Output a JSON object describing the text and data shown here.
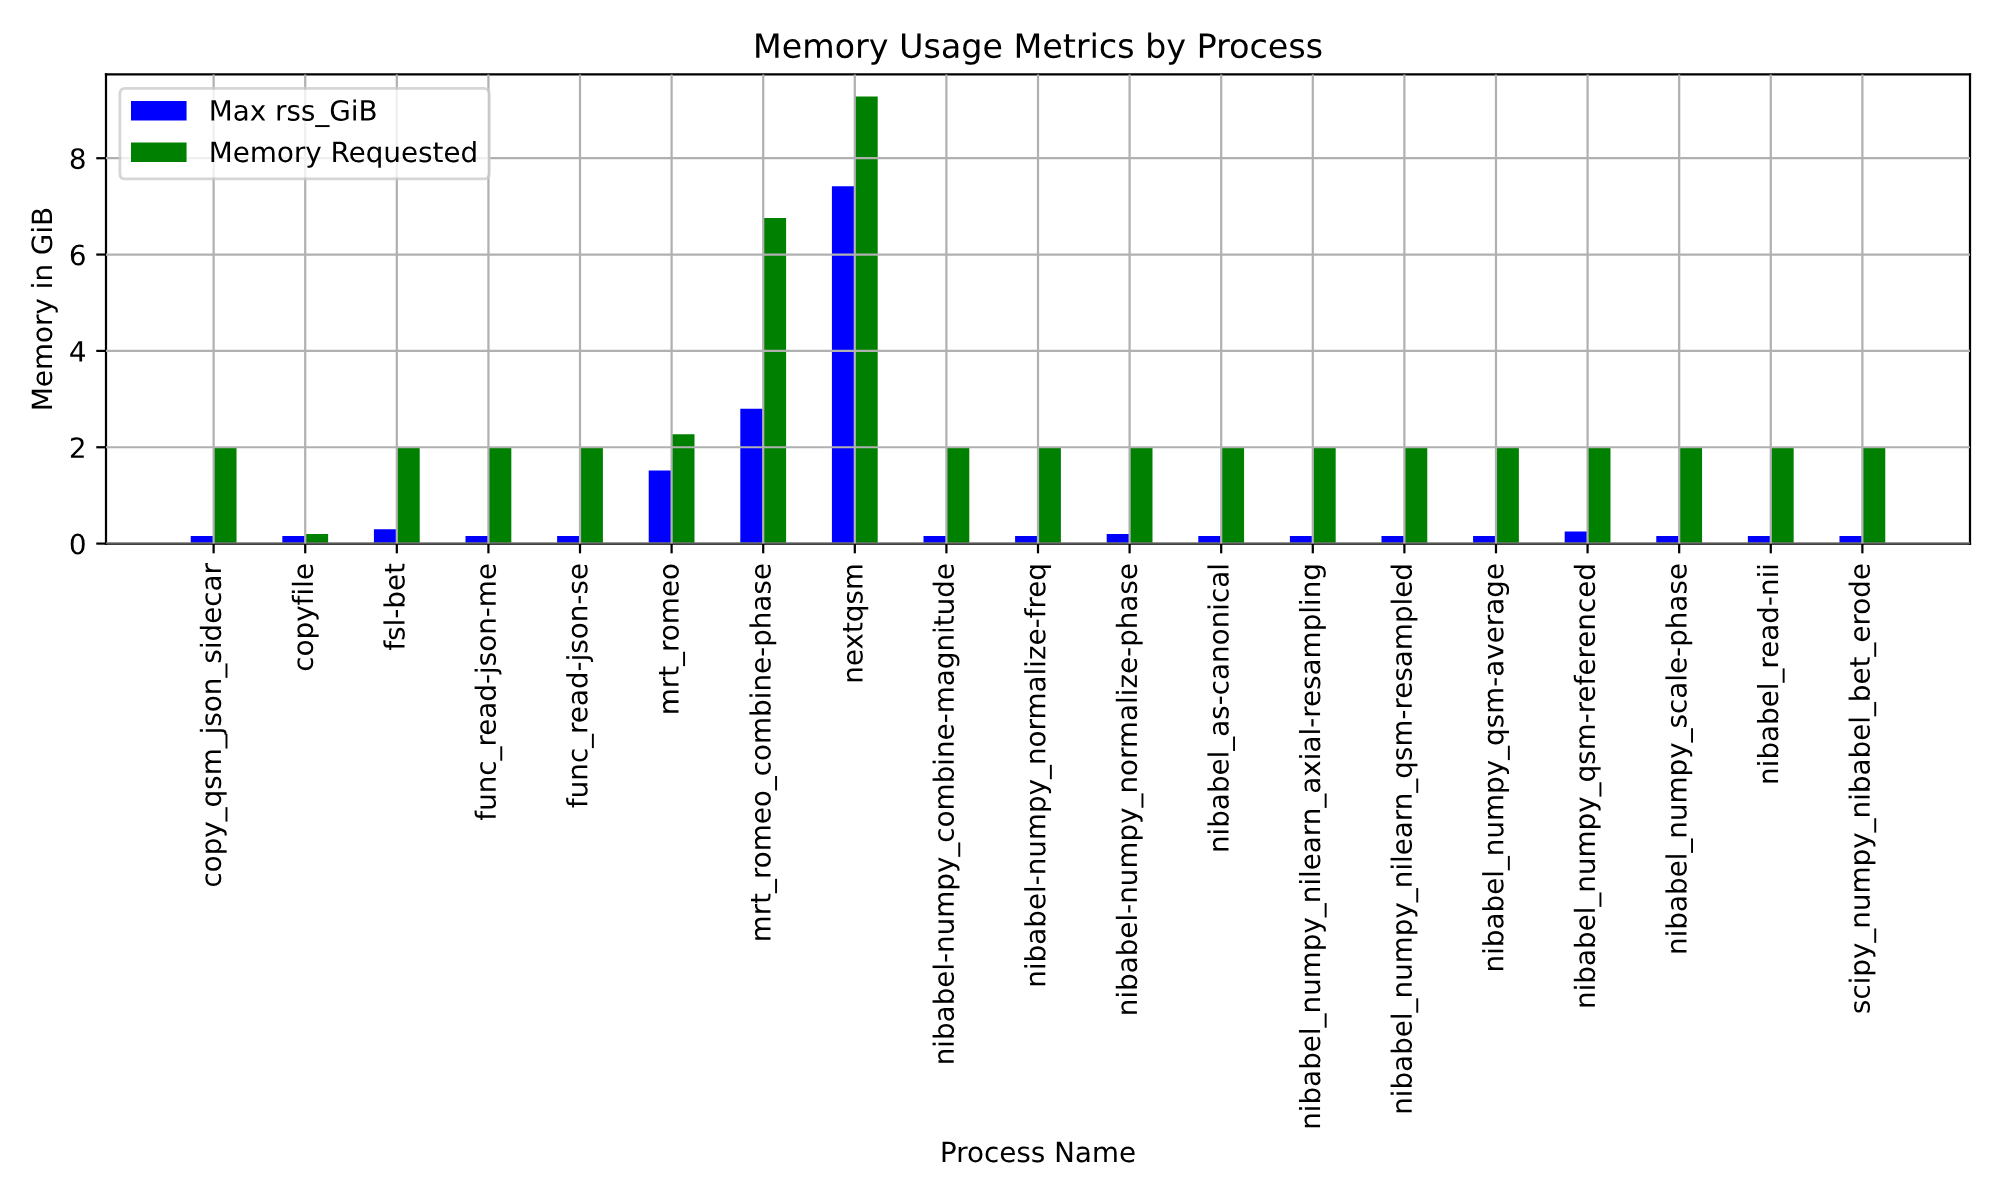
{
  "chart_data": {
    "type": "bar",
    "title": "Memory Usage Metrics by Process",
    "xlabel": "Process Name",
    "ylabel": "Memory in GiB",
    "categories": [
      "copy_qsm_json_sidecar",
      "copyfile",
      "fsl-bet",
      "func_read-json-me",
      "func_read-json-se",
      "mrt_romeo",
      "mrt_romeo_combine-phase",
      "nextqsm",
      "nibabel-numpy_combine-magnitude",
      "nibabel-numpy_normalize-freq",
      "nibabel-numpy_normalize-phase",
      "nibabel_as-canonical",
      "nibabel_numpy_nilearn_axial-resampling",
      "nibabel_numpy_nilearn_qsm-resampled",
      "nibabel_numpy_qsm-average",
      "nibabel_numpy_qsm-referenced",
      "nibabel_numpy_scale-phase",
      "nibabel_read-nii",
      "scipy_numpy_nibabel_bet_erode"
    ],
    "series": [
      {
        "name": "Max rss_GiB",
        "color": "#0000ff",
        "values": [
          0.16,
          0.16,
          0.3,
          0.16,
          0.16,
          1.52,
          2.8,
          7.42,
          0.16,
          0.16,
          0.2,
          0.16,
          0.16,
          0.16,
          0.16,
          0.25,
          0.16,
          0.16,
          0.16
        ]
      },
      {
        "name": "Memory Requested",
        "color": "#008000",
        "values": [
          2,
          0.2,
          2,
          2,
          2,
          2.27,
          6.76,
          9.28,
          2,
          2,
          2,
          2,
          2,
          2,
          2,
          2,
          2,
          2,
          2
        ]
      }
    ],
    "ylim": [
      0,
      9.74
    ],
    "yticks": [
      0,
      2,
      4,
      6,
      8
    ],
    "grid": true,
    "legend": "top left"
  }
}
